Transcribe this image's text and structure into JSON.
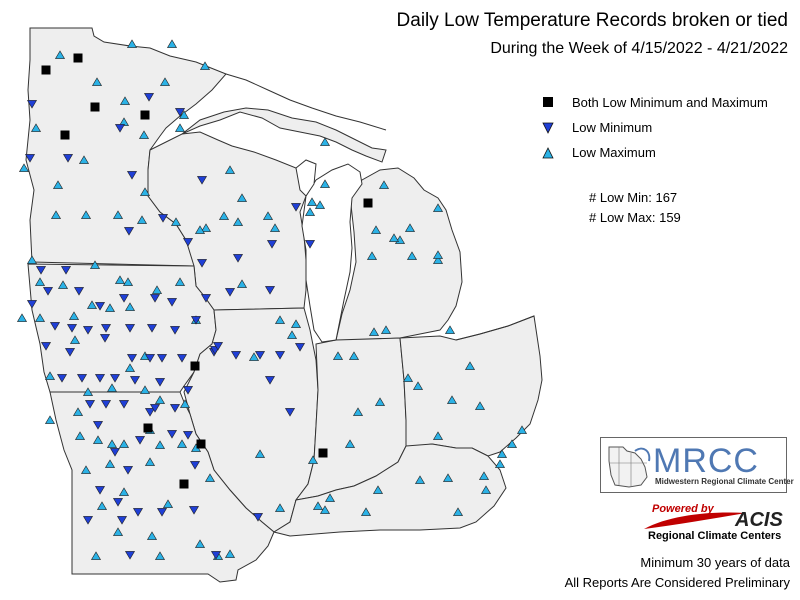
{
  "title": "Daily Low Temperature Records broken or tied",
  "subtitle": "During the Week of 4/15/2022 - 4/21/2022",
  "legend": [
    {
      "symbol": "square",
      "label": "Both Low Minimum and Maximum",
      "color": "#000000"
    },
    {
      "symbol": "triangle-down",
      "label": "Low Minimum",
      "color": "#1f3fd6"
    },
    {
      "symbol": "triangle-up",
      "label": "Low Maximum",
      "color": "#2bb2e6"
    }
  ],
  "counts": {
    "low_min": "# Low Min: 167",
    "low_max": "# Low Max: 159"
  },
  "branding": {
    "mrcc_logo": "MRCC",
    "mrcc_name": "Midwestern Regional Climate Center",
    "powered_by": "Powered by",
    "acis_logo": "ACIS",
    "acis_name": "Regional Climate Centers"
  },
  "footer": {
    "line1": "Minimum 30 years of data",
    "line2": "All Reports Are Considered Preliminary"
  },
  "colors": {
    "land": "#eeeeee",
    "lake": "#ffffff",
    "border": "#333333",
    "low_min": "#1f3fd6",
    "low_max": "#2bb2e6",
    "both": "#000000"
  },
  "markers": {
    "both": [
      [
        46,
        70
      ],
      [
        78,
        58
      ],
      [
        95,
        107
      ],
      [
        65,
        135
      ],
      [
        145,
        115
      ],
      [
        368,
        203
      ],
      [
        195,
        366
      ],
      [
        148,
        428
      ],
      [
        201,
        444
      ],
      [
        323,
        453
      ],
      [
        184,
        484
      ]
    ],
    "low_min": [
      [
        32,
        104
      ],
      [
        68,
        158
      ],
      [
        30,
        158
      ],
      [
        120,
        128
      ],
      [
        132,
        175
      ],
      [
        149,
        97
      ],
      [
        180,
        112
      ],
      [
        202,
        180
      ],
      [
        129,
        231
      ],
      [
        163,
        218
      ],
      [
        188,
        242
      ],
      [
        202,
        263
      ],
      [
        238,
        258
      ],
      [
        272,
        244
      ],
      [
        296,
        207
      ],
      [
        310,
        244
      ],
      [
        270,
        290
      ],
      [
        230,
        292
      ],
      [
        206,
        298
      ],
      [
        41,
        270
      ],
      [
        66,
        270
      ],
      [
        48,
        291
      ],
      [
        79,
        291
      ],
      [
        100,
        306
      ],
      [
        124,
        298
      ],
      [
        155,
        298
      ],
      [
        172,
        302
      ],
      [
        32,
        304
      ],
      [
        55,
        326
      ],
      [
        72,
        328
      ],
      [
        88,
        330
      ],
      [
        106,
        328
      ],
      [
        130,
        328
      ],
      [
        152,
        328
      ],
      [
        175,
        330
      ],
      [
        196,
        320
      ],
      [
        46,
        346
      ],
      [
        70,
        352
      ],
      [
        105,
        338
      ],
      [
        132,
        358
      ],
      [
        150,
        358
      ],
      [
        162,
        358
      ],
      [
        182,
        358
      ],
      [
        214,
        352
      ],
      [
        236,
        355
      ],
      [
        260,
        355
      ],
      [
        280,
        355
      ],
      [
        300,
        347
      ],
      [
        62,
        378
      ],
      [
        82,
        378
      ],
      [
        100,
        378
      ],
      [
        115,
        378
      ],
      [
        135,
        380
      ],
      [
        160,
        382
      ],
      [
        188,
        390
      ],
      [
        90,
        404
      ],
      [
        106,
        404
      ],
      [
        124,
        404
      ],
      [
        150,
        412
      ],
      [
        175,
        408
      ],
      [
        98,
        425
      ],
      [
        140,
        440
      ],
      [
        172,
        434
      ],
      [
        115,
        452
      ],
      [
        128,
        470
      ],
      [
        195,
        465
      ],
      [
        100,
        490
      ],
      [
        118,
        502
      ],
      [
        138,
        512
      ],
      [
        162,
        512
      ],
      [
        194,
        510
      ],
      [
        88,
        520
      ],
      [
        122,
        520
      ],
      [
        258,
        517
      ],
      [
        130,
        555
      ],
      [
        216,
        555
      ],
      [
        290,
        412
      ],
      [
        270,
        380
      ],
      [
        155,
        408
      ],
      [
        188,
        435
      ],
      [
        215,
        350
      ],
      [
        218,
        346
      ]
    ],
    "low_max": [
      [
        60,
        55
      ],
      [
        132,
        44
      ],
      [
        172,
        44
      ],
      [
        205,
        66
      ],
      [
        165,
        82
      ],
      [
        125,
        101
      ],
      [
        97,
        82
      ],
      [
        184,
        115
      ],
      [
        58,
        185
      ],
      [
        24,
        168
      ],
      [
        36,
        128
      ],
      [
        84,
        160
      ],
      [
        180,
        128
      ],
      [
        145,
        192
      ],
      [
        242,
        198
      ],
      [
        238,
        222
      ],
      [
        268,
        216
      ],
      [
        275,
        228
      ],
      [
        325,
        142
      ],
      [
        312,
        202
      ],
      [
        325,
        184
      ],
      [
        384,
        185
      ],
      [
        376,
        230
      ],
      [
        400,
        240
      ],
      [
        412,
        256
      ],
      [
        438,
        260
      ],
      [
        438,
        208
      ],
      [
        372,
        256
      ],
      [
        230,
        170
      ],
      [
        206,
        228
      ],
      [
        224,
        216
      ],
      [
        196,
        320
      ],
      [
        242,
        284
      ],
      [
        280,
        320
      ],
      [
        292,
        335
      ],
      [
        254,
        357
      ],
      [
        32,
        260
      ],
      [
        40,
        282
      ],
      [
        63,
        285
      ],
      [
        95,
        265
      ],
      [
        128,
        282
      ],
      [
        157,
        290
      ],
      [
        180,
        282
      ],
      [
        120,
        280
      ],
      [
        22,
        318
      ],
      [
        40,
        318
      ],
      [
        74,
        316
      ],
      [
        92,
        305
      ],
      [
        110,
        308
      ],
      [
        130,
        307
      ],
      [
        75,
        340
      ],
      [
        50,
        376
      ],
      [
        130,
        368
      ],
      [
        145,
        356
      ],
      [
        88,
        392
      ],
      [
        78,
        412
      ],
      [
        112,
        388
      ],
      [
        145,
        390
      ],
      [
        160,
        400
      ],
      [
        185,
        404
      ],
      [
        50,
        420
      ],
      [
        80,
        436
      ],
      [
        98,
        440
      ],
      [
        112,
        444
      ],
      [
        124,
        444
      ],
      [
        150,
        430
      ],
      [
        160,
        445
      ],
      [
        110,
        464
      ],
      [
        86,
        470
      ],
      [
        150,
        462
      ],
      [
        124,
        492
      ],
      [
        168,
        504
      ],
      [
        210,
        478
      ],
      [
        196,
        448
      ],
      [
        182,
        444
      ],
      [
        102,
        506
      ],
      [
        118,
        532
      ],
      [
        152,
        536
      ],
      [
        200,
        544
      ],
      [
        96,
        556
      ],
      [
        160,
        556
      ],
      [
        218,
        556
      ],
      [
        230,
        554
      ],
      [
        260,
        454
      ],
      [
        313,
        460
      ],
      [
        325,
        510
      ],
      [
        350,
        444
      ],
      [
        358,
        412
      ],
      [
        380,
        402
      ],
      [
        374,
        332
      ],
      [
        386,
        330
      ],
      [
        354,
        356
      ],
      [
        338,
        356
      ],
      [
        296,
        324
      ],
      [
        450,
        330
      ],
      [
        470,
        366
      ],
      [
        418,
        386
      ],
      [
        408,
        378
      ],
      [
        452,
        400
      ],
      [
        480,
        406
      ],
      [
        438,
        436
      ],
      [
        448,
        478
      ],
      [
        500,
        464
      ],
      [
        502,
        454
      ],
      [
        484,
        476
      ],
      [
        458,
        512
      ],
      [
        486,
        490
      ],
      [
        420,
        480
      ],
      [
        378,
        490
      ],
      [
        366,
        512
      ],
      [
        330,
        498
      ],
      [
        318,
        506
      ],
      [
        280,
        508
      ],
      [
        522,
        430
      ],
      [
        512,
        444
      ],
      [
        438,
        255
      ],
      [
        410,
        228
      ],
      [
        394,
        238
      ],
      [
        124,
        122
      ],
      [
        144,
        135
      ],
      [
        56,
        215
      ],
      [
        86,
        215
      ],
      [
        118,
        215
      ],
      [
        142,
        220
      ],
      [
        176,
        222
      ],
      [
        200,
        230
      ],
      [
        310,
        212
      ],
      [
        320,
        205
      ]
    ]
  }
}
